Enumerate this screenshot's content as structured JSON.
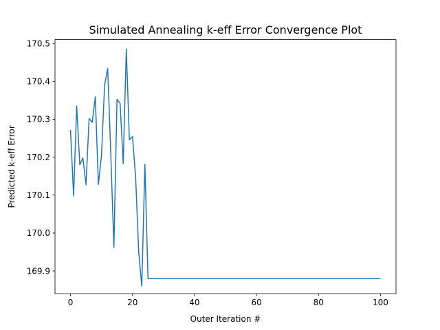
{
  "chart_data": {
    "type": "line",
    "title": "Simulated Annealing k-eff Error Convergence Plot",
    "xlabel": "Outer Iteration #",
    "ylabel": "Predicted k-eff Error",
    "xlim": [
      -5,
      105
    ],
    "ylim": [
      169.84,
      170.51
    ],
    "x_ticks": [
      0,
      20,
      40,
      60,
      80,
      100
    ],
    "y_ticks": [
      169.9,
      170.0,
      170.1,
      170.2,
      170.3,
      170.4,
      170.5
    ],
    "x_tick_labels": [
      "0",
      "20",
      "40",
      "60",
      "80",
      "100"
    ],
    "y_tick_labels": [
      "169.9",
      "170.0",
      "170.1",
      "170.2",
      "170.3",
      "170.4",
      "170.5"
    ],
    "grid": false,
    "line_color": "#1f77b4",
    "series": [
      {
        "x": [
          0,
          1,
          2,
          3,
          4,
          5,
          6,
          7,
          8,
          9,
          10,
          11,
          12,
          13,
          14,
          15,
          16,
          17,
          18,
          19,
          20,
          21,
          22,
          23,
          24,
          25,
          26,
          27,
          28,
          29,
          30,
          31,
          32,
          33,
          34,
          35,
          36,
          37,
          38,
          39,
          40,
          41,
          42,
          43,
          44,
          45,
          46,
          47,
          48,
          49,
          50,
          51,
          52,
          53,
          54,
          55,
          56,
          57,
          58,
          59,
          60,
          61,
          62,
          63,
          64,
          65,
          66,
          67,
          68,
          69,
          70,
          71,
          72,
          73,
          74,
          75,
          76,
          77,
          78,
          79,
          80,
          81,
          82,
          83,
          84,
          85,
          86,
          87,
          88,
          89,
          90,
          91,
          92,
          93,
          94,
          95,
          96,
          97,
          98,
          99,
          100
        ],
        "y": [
          170.272,
          170.098,
          170.335,
          170.18,
          170.198,
          170.127,
          170.302,
          170.292,
          170.359,
          170.128,
          170.205,
          170.39,
          170.434,
          170.208,
          169.962,
          170.352,
          170.342,
          170.183,
          170.485,
          170.246,
          170.254,
          170.149,
          169.95,
          169.86,
          170.181,
          169.88,
          169.88,
          169.88,
          169.88,
          169.88,
          169.88,
          169.88,
          169.88,
          169.88,
          169.88,
          169.88,
          169.88,
          169.88,
          169.88,
          169.88,
          169.88,
          169.88,
          169.88,
          169.88,
          169.88,
          169.88,
          169.88,
          169.88,
          169.88,
          169.88,
          169.88,
          169.88,
          169.88,
          169.88,
          169.88,
          169.88,
          169.88,
          169.88,
          169.88,
          169.88,
          169.88,
          169.88,
          169.88,
          169.88,
          169.88,
          169.88,
          169.88,
          169.88,
          169.88,
          169.88,
          169.88,
          169.88,
          169.88,
          169.88,
          169.88,
          169.88,
          169.88,
          169.88,
          169.88,
          169.88,
          169.88,
          169.88,
          169.88,
          169.88,
          169.88,
          169.88,
          169.88,
          169.88,
          169.88,
          169.88,
          169.88,
          169.88,
          169.88,
          169.88,
          169.88,
          169.88,
          169.88,
          169.88,
          169.88,
          169.88,
          169.88
        ]
      }
    ]
  }
}
